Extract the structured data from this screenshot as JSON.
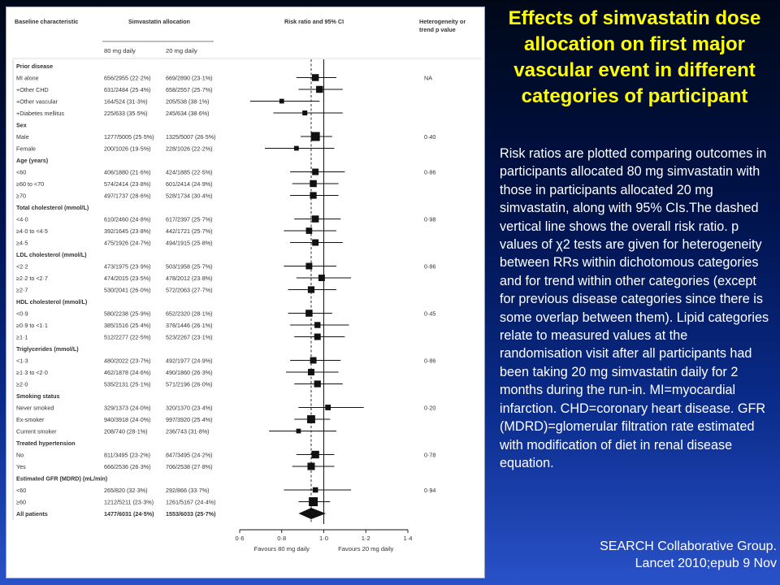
{
  "slide": {
    "title": "Effects of simvastatin dose allocation on first major vascular event in different categories of participant",
    "caption": "Risk ratios are plotted comparing outcomes in participants allocated 80 mg simvastatin with those in participants allocated 20 mg simvastatin, along with 95% CIs.The dashed vertical line shows the overall risk ratio. p values of χ2 tests are given for heterogeneity between RRs within dichotomous categories and for trend within other categories (except for previous disease categories since there is some overlap between them). Lipid categories relate to measured values at the randomisation visit after all participants had been taking 20 mg simvastatin daily for 2 months during the run-in. MI=myocardial infarction. CHD=coronary heart disease. GFR (MDRD)=glomerular filtration rate estimated with modification of diet in renal disease equation.",
    "citation_line1": "SEARCH Collaborative Group.",
    "citation_line2": "Lancet 2010;epub 9 Nov"
  },
  "colors": {
    "title": "#ffff00",
    "text": "#ffffff",
    "marker": "#111111"
  },
  "chart_data": {
    "type": "forest",
    "columns": {
      "characteristic": "Baseline characteristic",
      "allocation": "Simvastatin allocation",
      "dose80": "80 mg daily",
      "dose20": "20 mg daily",
      "ratio": "Risk ratio and 95% CI",
      "heterogeneity": "Heterogeneity or trend p value"
    },
    "x_axis": {
      "ticks": [
        0.6,
        0.8,
        1.0,
        1.2,
        1.4
      ],
      "tick_labels": [
        "0·6",
        "0·8",
        "1·0",
        "1·2",
        "1·4"
      ],
      "range": [
        0.6,
        1.4
      ],
      "reference": 1.0,
      "overall": 0.94,
      "left_label": "Favours 80 mg daily",
      "right_label": "Favours 20 mg daily"
    },
    "rows": [
      {
        "kind": "header",
        "label": "Prior disease"
      },
      {
        "kind": "data",
        "label": "MI alone",
        "a": "656/2955 (22·2%)",
        "b": "669/2890 (23·1%)",
        "rr": 0.96,
        "lo": 0.87,
        "hi": 1.06,
        "size": 1.0,
        "p": "NA"
      },
      {
        "kind": "data",
        "label": "+Other CHD",
        "a": "631/2484 (25·4%)",
        "b": "658/2557 (25·7%)",
        "rr": 0.98,
        "lo": 0.88,
        "hi": 1.09,
        "size": 1.0,
        "p": ""
      },
      {
        "kind": "data",
        "label": "+Other vascular",
        "a": "164/524 (31·3%)",
        "b": "205/538 (38·1%)",
        "rr": 0.8,
        "lo": 0.65,
        "hi": 0.98,
        "size": 0.5,
        "p": ""
      },
      {
        "kind": "data",
        "label": "+Diabetes mellitus",
        "a": "225/633 (35·5%)",
        "b": "245/634 (38·6%)",
        "rr": 0.91,
        "lo": 0.76,
        "hi": 1.09,
        "size": 0.55,
        "p": ""
      },
      {
        "kind": "header",
        "label": "Sex"
      },
      {
        "kind": "data",
        "label": "Male",
        "a": "1277/5005 (25·5%)",
        "b": "1325/5007 (26·5%)",
        "rr": 0.96,
        "lo": 0.89,
        "hi": 1.04,
        "size": 1.45,
        "p": "0·40"
      },
      {
        "kind": "data",
        "label": "Female",
        "a": "200/1026 (19·5%)",
        "b": "228/1026 (22·2%)",
        "rr": 0.87,
        "lo": 0.72,
        "hi": 1.05,
        "size": 0.5,
        "p": ""
      },
      {
        "kind": "header",
        "label": "Age (years)"
      },
      {
        "kind": "data",
        "label": "<60",
        "a": "406/1880 (21·6%)",
        "b": "424/1885 (22·5%)",
        "rr": 0.96,
        "lo": 0.84,
        "hi": 1.1,
        "size": 0.9,
        "p": "0·86"
      },
      {
        "kind": "data",
        "label": "≥60 to <70",
        "a": "574/2414 (23·8%)",
        "b": "601/2414 (24·9%)",
        "rr": 0.95,
        "lo": 0.85,
        "hi": 1.07,
        "size": 1.0,
        "p": ""
      },
      {
        "kind": "data",
        "label": "≥70",
        "a": "497/1737 (28·6%)",
        "b": "528/1734 (30·4%)",
        "rr": 0.95,
        "lo": 0.84,
        "hi": 1.07,
        "size": 0.95,
        "p": ""
      },
      {
        "kind": "header",
        "label": "Total cholesterol (mmol/L)"
      },
      {
        "kind": "data",
        "label": "<4·0",
        "a": "610/2460 (24·8%)",
        "b": "617/2397 (25·7%)",
        "rr": 0.96,
        "lo": 0.86,
        "hi": 1.08,
        "size": 1.0,
        "p": "0·98"
      },
      {
        "kind": "data",
        "label": "≥4·0 to <4·5",
        "a": "392/1645 (23·8%)",
        "b": "442/1721 (25·7%)",
        "rr": 0.93,
        "lo": 0.81,
        "hi": 1.06,
        "size": 0.85,
        "p": ""
      },
      {
        "kind": "data",
        "label": "≥4·5",
        "a": "475/1926 (24·7%)",
        "b": "494/1915 (25·8%)",
        "rr": 0.96,
        "lo": 0.84,
        "hi": 1.09,
        "size": 0.9,
        "p": ""
      },
      {
        "kind": "header",
        "label": "LDL cholesterol (mmol/L)"
      },
      {
        "kind": "data",
        "label": "<2·2",
        "a": "473/1975 (23·9%)",
        "b": "503/1958 (25·7%)",
        "rr": 0.93,
        "lo": 0.81,
        "hi": 1.06,
        "size": 0.9,
        "p": "0·86"
      },
      {
        "kind": "data",
        "label": "≥2·2 to <2·7",
        "a": "474/2015 (23·5%)",
        "b": "478/2012 (23·8%)",
        "rr": 0.99,
        "lo": 0.87,
        "hi": 1.13,
        "size": 0.9,
        "p": ""
      },
      {
        "kind": "data",
        "label": "≥2·7",
        "a": "530/2041 (26·0%)",
        "b": "572/2063 (27·7%)",
        "rr": 0.94,
        "lo": 0.83,
        "hi": 1.06,
        "size": 0.95,
        "p": ""
      },
      {
        "kind": "header",
        "label": "HDL cholesterol (mmol/L)"
      },
      {
        "kind": "data",
        "label": "<0·9",
        "a": "580/2238 (25·9%)",
        "b": "652/2320 (28·1%)",
        "rr": 0.93,
        "lo": 0.83,
        "hi": 1.04,
        "size": 1.0,
        "p": "0·45"
      },
      {
        "kind": "data",
        "label": "≥0·9 to <1·1",
        "a": "385/1516 (25·4%)",
        "b": "378/1446 (26·1%)",
        "rr": 0.97,
        "lo": 0.84,
        "hi": 1.12,
        "size": 0.8,
        "p": ""
      },
      {
        "kind": "data",
        "label": "≥1·1",
        "a": "512/2277 (22·5%)",
        "b": "523/2267 (23·1%)",
        "rr": 0.97,
        "lo": 0.86,
        "hi": 1.1,
        "size": 0.9,
        "p": ""
      },
      {
        "kind": "header",
        "label": "Triglycerides (mmol/L)"
      },
      {
        "kind": "data",
        "label": "<1·3",
        "a": "480/2022 (23·7%)",
        "b": "492/1977 (24·9%)",
        "rr": 0.95,
        "lo": 0.84,
        "hi": 1.08,
        "size": 0.9,
        "p": "0·86"
      },
      {
        "kind": "data",
        "label": "≥1·3 to <2·0",
        "a": "462/1878 (24·6%)",
        "b": "490/1860 (26·3%)",
        "rr": 0.94,
        "lo": 0.82,
        "hi": 1.07,
        "size": 0.9,
        "p": ""
      },
      {
        "kind": "data",
        "label": "≥2·0",
        "a": "535/2131 (25·1%)",
        "b": "571/2196 (26·0%)",
        "rr": 0.97,
        "lo": 0.86,
        "hi": 1.09,
        "size": 0.95,
        "p": ""
      },
      {
        "kind": "header",
        "label": "Smoking status"
      },
      {
        "kind": "data",
        "label": "Never smoked",
        "a": "329/1373 (24·0%)",
        "b": "320/1370 (23·4%)",
        "rr": 1.02,
        "lo": 0.88,
        "hi": 1.19,
        "size": 0.7,
        "p": "0·20"
      },
      {
        "kind": "data",
        "label": "Ex-smoker",
        "a": "940/3918 (24·0%)",
        "b": "997/3920 (25·4%)",
        "rr": 0.94,
        "lo": 0.86,
        "hi": 1.03,
        "size": 1.25,
        "p": ""
      },
      {
        "kind": "data",
        "label": "Current smoker",
        "a": "208/740 (28·1%)",
        "b": "236/743 (31·8%)",
        "rr": 0.88,
        "lo": 0.74,
        "hi": 1.06,
        "size": 0.5,
        "p": ""
      },
      {
        "kind": "header",
        "label": "Treated hypertension"
      },
      {
        "kind": "data",
        "label": "No",
        "a": "811/3495 (23·2%)",
        "b": "847/3495 (24·2%)",
        "rr": 0.96,
        "lo": 0.87,
        "hi": 1.05,
        "size": 1.15,
        "p": "0·78"
      },
      {
        "kind": "data",
        "label": "Yes",
        "a": "666/2536 (26·3%)",
        "b": "706/2538 (27·8%)",
        "rr": 0.94,
        "lo": 0.85,
        "hi": 1.05,
        "size": 1.1,
        "p": ""
      },
      {
        "kind": "header",
        "label": "Estimated GFR (MDRD) (mL/min)"
      },
      {
        "kind": "data",
        "label": "<60",
        "a": "265/820 (32·3%)",
        "b": "292/866 (33·7%)",
        "rr": 0.96,
        "lo": 0.81,
        "hi": 1.13,
        "size": 0.65,
        "p": "0·94"
      },
      {
        "kind": "data",
        "label": "≥60",
        "a": "1212/5211 (23·3%)",
        "b": "1261/5167 (24·4%)",
        "rr": 0.95,
        "lo": 0.88,
        "hi": 1.03,
        "size": 1.45,
        "p": ""
      },
      {
        "kind": "total",
        "label": "All patients",
        "a": "1477/6031 (24·5%)",
        "b": "1553/6033 (25·7%)",
        "rr": 0.94,
        "lo": 0.88,
        "hi": 1.01,
        "p": ""
      }
    ]
  }
}
